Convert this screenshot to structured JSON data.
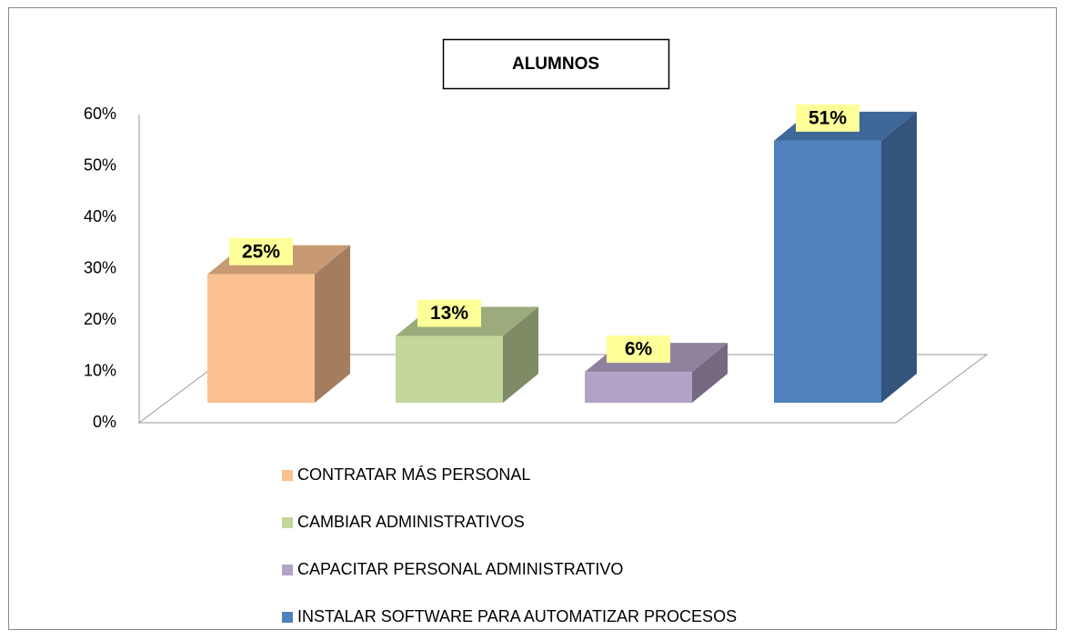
{
  "chart_data": {
    "type": "bar3d",
    "title": "ALUMNOS",
    "categories": [
      null
    ],
    "series": [
      {
        "name": "CONTRATAR MÁS PERSONAL",
        "color": "#fac090",
        "values": [
          25
        ],
        "value_labels": [
          "25%"
        ]
      },
      {
        "name": "CAMBIAR ADMINISTRATIVOS",
        "color": "#c3d69b",
        "values": [
          13
        ],
        "value_labels": [
          "13%"
        ]
      },
      {
        "name": "CAPACITAR PERSONAL ADMINISTRATIVO",
        "color": "#b3a2c7",
        "values": [
          6
        ],
        "value_labels": [
          "6%"
        ]
      },
      {
        "name": "INSTALAR SOFTWARE PARA AUTOMATIZAR PROCESOS",
        "color": "#4f81bd",
        "values": [
          51
        ],
        "value_labels": [
          "51%"
        ]
      }
    ],
    "ylim": [
      0,
      60
    ],
    "yticks": [
      {
        "value": 0,
        "label": "0%"
      },
      {
        "value": 10,
        "label": "10%"
      },
      {
        "value": 20,
        "label": "20%"
      },
      {
        "value": 30,
        "label": "30%"
      },
      {
        "value": 40,
        "label": "40%"
      },
      {
        "value": 50,
        "label": "50%"
      },
      {
        "value": 60,
        "label": "60%"
      }
    ],
    "legend": "bottom"
  }
}
